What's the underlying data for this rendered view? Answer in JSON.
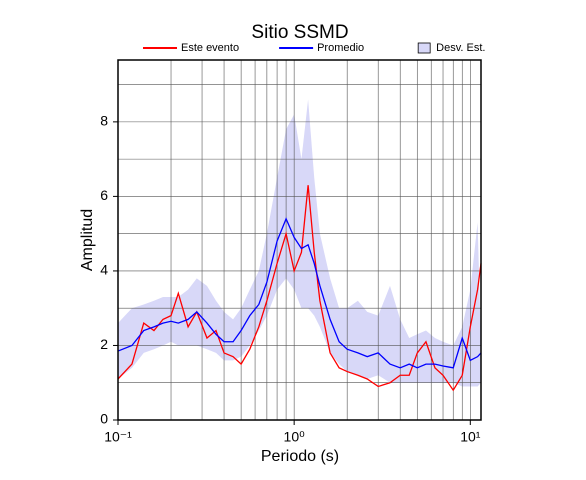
{
  "chart_data": {
    "type": "line",
    "title": "Sitio SSMD",
    "xlabel": "Periodo (s)",
    "ylabel": "Amplitud",
    "x": [
      0.1,
      0.12,
      0.14,
      0.16,
      0.18,
      0.2,
      0.22,
      0.25,
      0.28,
      0.32,
      0.36,
      0.4,
      0.45,
      0.5,
      0.56,
      0.63,
      0.7,
      0.8,
      0.9,
      1.0,
      1.1,
      1.2,
      1.3,
      1.4,
      1.6,
      1.8,
      2.0,
      2.3,
      2.6,
      3.0,
      3.5,
      4.0,
      4.5,
      5,
      5.6,
      6.3,
      7,
      8,
      9,
      10,
      11,
      11.5
    ],
    "series": [
      {
        "name": "Este evento",
        "color": "#ff0000",
        "values": [
          1.1,
          1.5,
          2.6,
          2.4,
          2.7,
          2.8,
          3.4,
          2.5,
          2.9,
          2.2,
          2.4,
          1.8,
          1.7,
          1.5,
          1.9,
          2.5,
          3.2,
          4.2,
          5.0,
          4.0,
          4.5,
          6.3,
          4.5,
          3.2,
          1.8,
          1.4,
          1.3,
          1.2,
          1.1,
          0.9,
          1.0,
          1.2,
          1.2,
          1.8,
          2.1,
          1.4,
          1.2,
          0.8,
          1.2,
          2.5,
          3.5,
          4.2
        ]
      },
      {
        "name": "Promedio",
        "color": "#0000ff",
        "values": [
          1.85,
          2.0,
          2.4,
          2.5,
          2.6,
          2.65,
          2.6,
          2.7,
          2.9,
          2.6,
          2.3,
          2.1,
          2.1,
          2.4,
          2.8,
          3.1,
          3.7,
          4.8,
          5.4,
          4.9,
          4.6,
          4.7,
          4.2,
          3.6,
          2.7,
          2.1,
          1.9,
          1.8,
          1.7,
          1.8,
          1.5,
          1.4,
          1.5,
          1.4,
          1.5,
          1.5,
          1.45,
          1.4,
          2.2,
          1.6,
          1.7,
          1.8
        ]
      },
      {
        "name": "Desv. Est.",
        "color": "#d8d8f8",
        "lower": [
          1.1,
          1.4,
          1.8,
          1.9,
          2.0,
          2.1,
          2.0,
          2.0,
          2.0,
          1.9,
          1.8,
          1.6,
          1.6,
          1.7,
          2.0,
          2.4,
          2.8,
          3.5,
          3.8,
          3.5,
          3.0,
          3.0,
          2.8,
          2.5,
          1.8,
          1.5,
          1.3,
          1.2,
          1.1,
          1.2,
          1.0,
          1.0,
          1.0,
          1.0,
          1.0,
          1.0,
          1.0,
          1.0,
          0.9,
          0.9,
          0.9,
          1.0
        ],
        "upper": [
          2.6,
          3.0,
          3.1,
          3.2,
          3.3,
          3.3,
          3.3,
          3.5,
          3.8,
          3.6,
          3.2,
          2.9,
          2.7,
          3.0,
          3.5,
          4.0,
          5.0,
          6.5,
          7.8,
          8.2,
          7.0,
          8.6,
          6.5,
          5.0,
          3.8,
          3.0,
          3.0,
          3.2,
          2.9,
          2.8,
          3.6,
          2.7,
          2.2,
          2.3,
          2.4,
          2.2,
          2.1,
          2.0,
          2.5,
          3.5,
          5.3,
          2.0
        ]
      }
    ],
    "xscale": "log",
    "xlim": [
      0.1,
      11.5
    ],
    "xticks": [
      {
        "value": 0.1,
        "label": "10⁻¹"
      },
      {
        "value": 1,
        "label": "10⁰"
      },
      {
        "value": 10,
        "label": "10¹"
      }
    ],
    "xgrid": [
      0.1,
      0.2,
      0.3,
      0.4,
      0.5,
      0.6,
      0.7,
      0.8,
      0.9,
      1,
      2,
      3,
      4,
      5,
      6,
      7,
      8,
      9,
      10
    ],
    "ylim": [
      0,
      9.66
    ],
    "yticks": [
      0,
      2,
      4,
      6,
      8
    ],
    "ygrid": [
      1,
      2,
      3,
      4,
      5,
      6,
      7,
      8,
      9
    ],
    "grid": true
  }
}
